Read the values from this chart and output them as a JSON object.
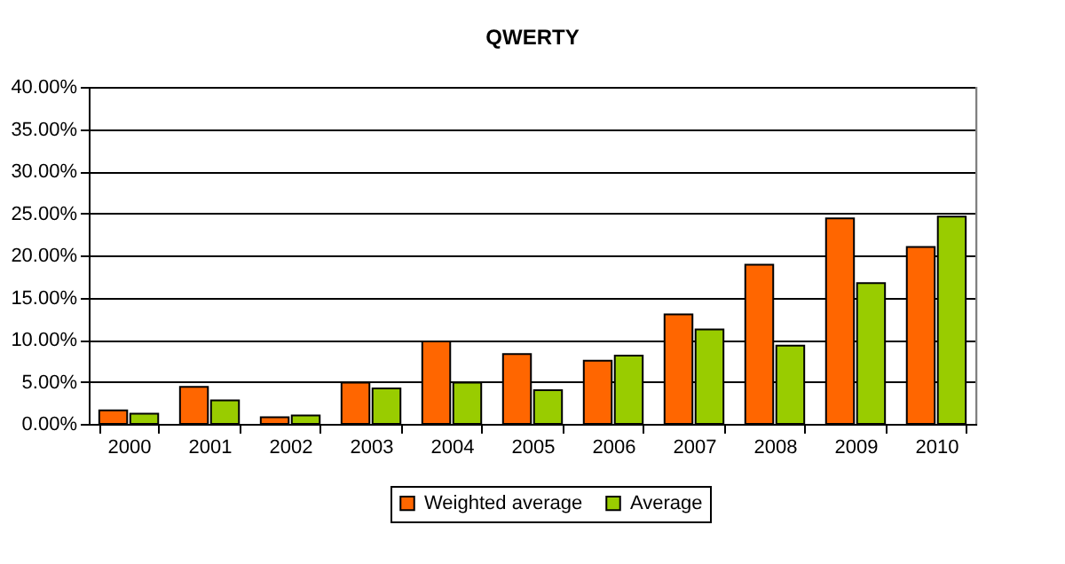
{
  "chart_data": {
    "type": "bar",
    "title": "QWERTY",
    "categories": [
      "2000",
      "2001",
      "2002",
      "2003",
      "2004",
      "2005",
      "2006",
      "2007",
      "2008",
      "2009",
      "2010"
    ],
    "series": [
      {
        "name": "Weighted average",
        "color": "#ff6600",
        "values": [
          1.6,
          4.4,
          0.8,
          4.9,
          9.8,
          8.3,
          7.5,
          13.0,
          18.9,
          24.4,
          21.0
        ]
      },
      {
        "name": "Average",
        "color": "#99cc00",
        "values": [
          1.2,
          2.8,
          1.0,
          4.2,
          4.9,
          4.0,
          8.1,
          11.2,
          9.3,
          16.7,
          24.6
        ]
      }
    ],
    "ylim": [
      0,
      40
    ],
    "yticks": [
      {
        "value": 0,
        "label": "0.00%"
      },
      {
        "value": 5,
        "label": "5.00%"
      },
      {
        "value": 10,
        "label": "10.00%"
      },
      {
        "value": 15,
        "label": "15.00%"
      },
      {
        "value": 20,
        "label": "20.00%"
      },
      {
        "value": 25,
        "label": "25.00%"
      },
      {
        "value": 30,
        "label": "30.00%"
      },
      {
        "value": 35,
        "label": "35.00%"
      },
      {
        "value": 40,
        "label": "40.00%"
      }
    ],
    "grid": "y",
    "legend": "bottom"
  }
}
